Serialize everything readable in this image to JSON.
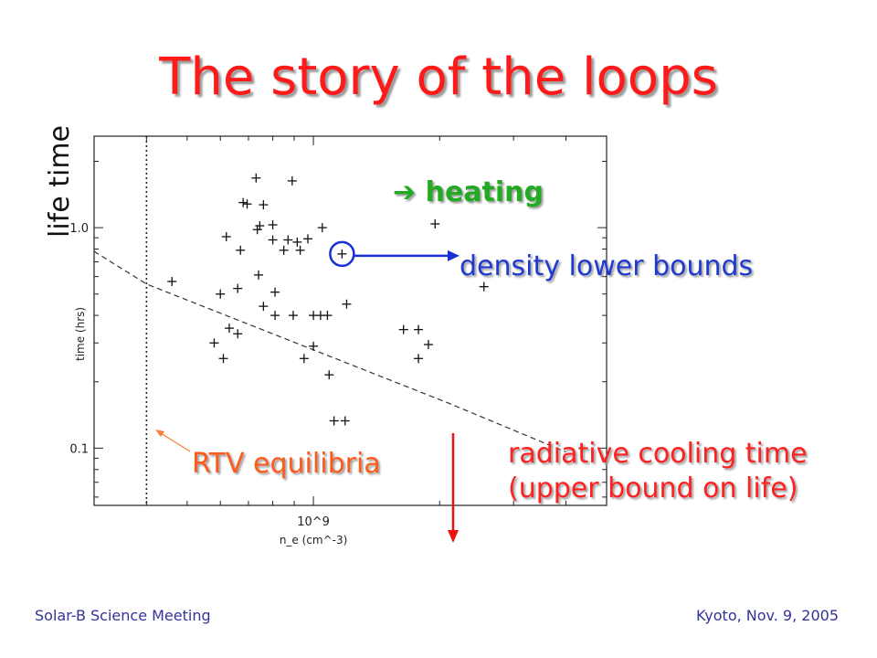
{
  "slide": {
    "title": "The story of the loops",
    "y_label_large": "life time",
    "annotation_heating": "heating",
    "annotation_density": "density lower bounds",
    "annotation_rtv": "RTV equilibria",
    "annotation_radiative_line1": "radiative cooling time",
    "annotation_radiative_line2": "(upper bound on life)",
    "footer_left": "Solar-B Science Meeting",
    "footer_right": "Kyoto, Nov. 9, 2005"
  },
  "colors": {
    "title": "#ff1a1a",
    "heating": "#22aa22",
    "density": "#1f3ad1",
    "rtv": "#ff5a1a",
    "radiative": "#ff2020",
    "footer": "#333399"
  },
  "chart_data": {
    "type": "scatter",
    "xlabel": "n_e (cm^-3)",
    "ylabel": "time (hrs)",
    "xscale": "log",
    "yscale": "log",
    "xlim": [
      300000000.0,
      5000000000.0
    ],
    "ylim": [
      0.055,
      2.6
    ],
    "x_tick_labels": [
      "10^9"
    ],
    "y_tick_labels": [
      "0.1",
      "1.0"
    ],
    "points": [
      {
        "x": 730000000.0,
        "y": 1.68
      },
      {
        "x": 890000000.0,
        "y": 1.63
      },
      {
        "x": 680000000.0,
        "y": 1.3
      },
      {
        "x": 695000000.0,
        "y": 1.28
      },
      {
        "x": 760000000.0,
        "y": 1.27
      },
      {
        "x": 620000000.0,
        "y": 0.91
      },
      {
        "x": 745000000.0,
        "y": 1.02
      },
      {
        "x": 735000000.0,
        "y": 0.98
      },
      {
        "x": 800000000.0,
        "y": 1.03
      },
      {
        "x": 1050000000.0,
        "y": 1.0
      },
      {
        "x": 1950000000.0,
        "y": 1.04
      },
      {
        "x": 670000000.0,
        "y": 0.79
      },
      {
        "x": 800000000.0,
        "y": 0.88
      },
      {
        "x": 870000000.0,
        "y": 0.88
      },
      {
        "x": 915000000.0,
        "y": 0.86
      },
      {
        "x": 970000000.0,
        "y": 0.89
      },
      {
        "x": 850000000.0,
        "y": 0.79
      },
      {
        "x": 930000000.0,
        "y": 0.79
      },
      {
        "x": 1170000000.0,
        "y": 0.76
      },
      {
        "x": 460000000.0,
        "y": 0.57
      },
      {
        "x": 600000000.0,
        "y": 0.5
      },
      {
        "x": 660000000.0,
        "y": 0.53
      },
      {
        "x": 740000000.0,
        "y": 0.61
      },
      {
        "x": 810000000.0,
        "y": 0.51
      },
      {
        "x": 760000000.0,
        "y": 0.44
      },
      {
        "x": 810000000.0,
        "y": 0.4
      },
      {
        "x": 895000000.0,
        "y": 0.4
      },
      {
        "x": 1000000000.0,
        "y": 0.4
      },
      {
        "x": 1040000000.0,
        "y": 0.4
      },
      {
        "x": 1200000000.0,
        "y": 0.45
      },
      {
        "x": 2550000000.0,
        "y": 0.54
      },
      {
        "x": 630000000.0,
        "y": 0.35
      },
      {
        "x": 660000000.0,
        "y": 0.33
      },
      {
        "x": 580000000.0,
        "y": 0.3
      },
      {
        "x": 1000000000.0,
        "y": 0.29
      },
      {
        "x": 1080000000.0,
        "y": 0.4
      },
      {
        "x": 1640000000.0,
        "y": 0.345
      },
      {
        "x": 1780000000.0,
        "y": 0.345
      },
      {
        "x": 1880000000.0,
        "y": 0.295
      },
      {
        "x": 610000000.0,
        "y": 0.255
      },
      {
        "x": 950000000.0,
        "y": 0.255
      },
      {
        "x": 1780000000.0,
        "y": 0.255
      },
      {
        "x": 1090000000.0,
        "y": 0.215
      },
      {
        "x": 1120000000.0,
        "y": 0.133
      },
      {
        "x": 1190000000.0,
        "y": 0.133
      }
    ],
    "highlighted_point": {
      "x": 1170000000.0,
      "y": 0.76
    },
    "cooling_time_line": [
      {
        "x": 300000000.0,
        "y": 0.78
      },
      {
        "x": 400000000.0,
        "y": 0.555
      },
      {
        "x": 2100000000.0,
        "y": 0.16
      },
      {
        "x": 4000000000.0,
        "y": 0.096
      }
    ],
    "rtv_equilibria_density": 400000000.0
  }
}
